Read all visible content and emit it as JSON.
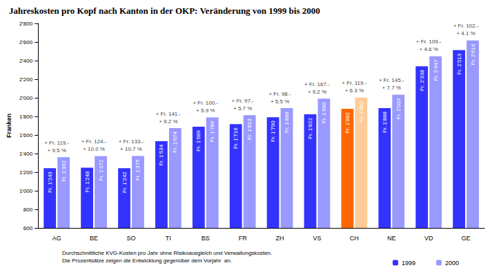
{
  "chart_data": {
    "type": "bar",
    "title": "Jahreskosten pro Kopf nach Kanton in der OKP: Veränderung von 1999 bis 2000",
    "y_label": "Franken",
    "categories": [
      "AG",
      "BE",
      "SO",
      "TI",
      "BS",
      "FR",
      "ZH",
      "VS",
      "CH",
      "NE",
      "VD",
      "GE"
    ],
    "series": [
      {
        "name": "1999",
        "color": "#3333ff",
        "colors": [
          "#3333ff",
          "#3333ff",
          "#3333ff",
          "#3333ff",
          "#3333ff",
          "#3333ff",
          "#3333ff",
          "#3333ff",
          "#ff6600",
          "#3333ff",
          "#3333ff",
          "#3333ff"
        ],
        "values": [
          1243,
          1248,
          1242,
          1534,
          1689,
          1716,
          1790,
          1822,
          1882,
          1888,
          2338,
          2513
        ],
        "value_labels": [
          "Fr. 1'243",
          "Fr. 1'248",
          "Fr. 1'242",
          "Fr. 1'534",
          "Fr. 1'689",
          "Fr. 1'716",
          "Fr. 1'790",
          "Fr. 1'822",
          "Fr. 1'882",
          "Fr. 1'888",
          "Fr. 2'338",
          "Fr. 2'513"
        ]
      },
      {
        "name": "2000",
        "color": "#9999ff",
        "colors": [
          "#9999ff",
          "#9999ff",
          "#9999ff",
          "#9999ff",
          "#9999ff",
          "#9999ff",
          "#9999ff",
          "#9999ff",
          "#ffcc99",
          "#9999ff",
          "#9999ff",
          "#9999ff"
        ],
        "values": [
          1362,
          1372,
          1375,
          1674,
          1789,
          1813,
          1888,
          1990,
          2002,
          2033,
          2447,
          2616
        ],
        "value_labels": [
          "Fr. 1'362",
          "Fr. 1'372",
          "Fr. 1'375",
          "Fr. 1'674",
          "Fr. 1'789",
          "Fr. 1'813",
          "Fr. 1'888",
          "Fr. 1'990",
          "Fr. 2'002",
          "Fr. 2'033",
          "Fr. 2'447",
          "Fr. 2'616"
        ]
      }
    ],
    "annotations": [
      {
        "category": "AG",
        "text": [
          "+ Fr. 119.-",
          "+ 9.5 %"
        ]
      },
      {
        "category": "BE",
        "text": [
          "+ Fr. 124.-",
          "+ 10.0 %"
        ]
      },
      {
        "category": "SO",
        "text": [
          "+ Fr. 133.-",
          "+ 10.7 %"
        ]
      },
      {
        "category": "TI",
        "text": [
          "+ Fr. 141.-",
          "+ 9.2 %"
        ]
      },
      {
        "category": "BS",
        "text": [
          "+ Fr. 100.-",
          "+ 5.9 %"
        ]
      },
      {
        "category": "FR",
        "text": [
          "+ Fr. 97.-",
          "+ 5.7 %"
        ]
      },
      {
        "category": "ZH",
        "text": [
          "+ Fr. 98.-",
          "+ 5.5 %"
        ]
      },
      {
        "category": "VS",
        "text": [
          "+ Fr. 167.-",
          "+ 9.2 %"
        ]
      },
      {
        "category": "CH",
        "text": [
          "+ Fr. 119.-",
          "+ 6.3 %"
        ]
      },
      {
        "category": "NE",
        "text": [
          "+ Fr. 145.-",
          "+ 7.7 %"
        ]
      },
      {
        "category": "VD",
        "text": [
          "+ Fr. 109.-",
          "+ 4.6 %"
        ]
      },
      {
        "category": "GE",
        "text": [
          "+ Fr. 102.-",
          "+ 4.1 %"
        ]
      }
    ],
    "notes": [
      "Durchschnittliche KVG-Kosten pro Jahr ohne Risikoausgleich und Verwaltungskosten.",
      "Die Prozentsätze zeigen die Entwicklung gegenüber dem Vorjahr  an."
    ],
    "ylim": [
      600,
      2800
    ],
    "yticks": [
      600,
      800,
      {
        "value": 1000,
        "label": "1'000"
      },
      {
        "value": 1200,
        "label": "1'200"
      },
      {
        "value": 1400,
        "label": "1'400"
      },
      {
        "value": 1600,
        "label": "1'600"
      },
      {
        "value": 1800,
        "label": "1'800"
      },
      {
        "value": 2000,
        "label": "2'000"
      },
      {
        "value": 2200,
        "label": "2'200"
      },
      {
        "value": 2400,
        "label": "2'400"
      },
      {
        "value": 2600,
        "label": "2'600"
      },
      {
        "value": 2800,
        "label": "2'800"
      }
    ],
    "grid": false,
    "legend": "lower right",
    "data_labels": true
  }
}
